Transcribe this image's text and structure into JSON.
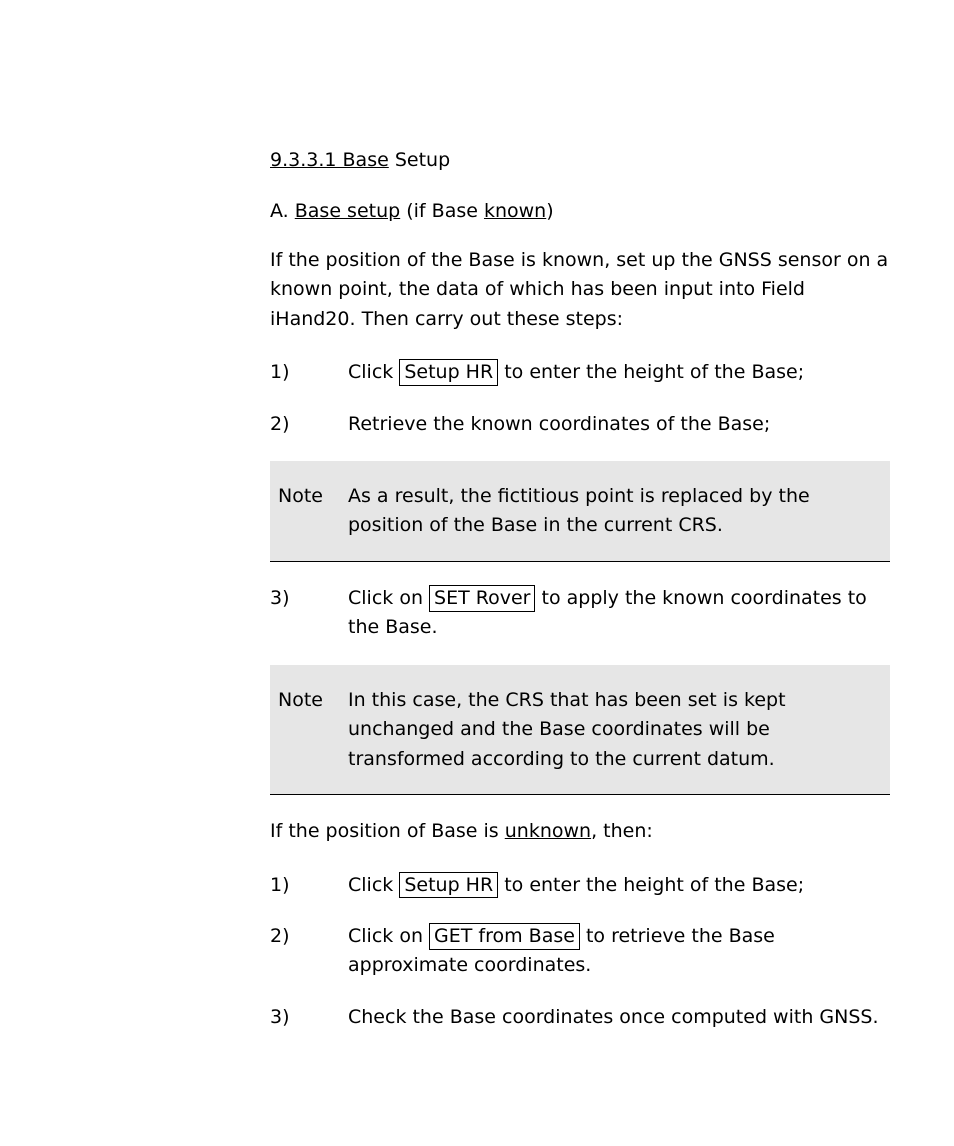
{
  "section_heading_underlined": "9.3.3.1 Base",
  "section_heading_trail": " Setup",
  "h2_num": "A.",
  "h2_u1": "Base setup",
  "h2_mid": " (if Base ",
  "h2_u2": "known",
  "h2_end": ")",
  "intro_para": "If the position of the Base is known, set up the GNSS sensor on a known point, the data of which has been input into Field iHand20. Then carry out these steps:",
  "steps": {
    "s1_num": "1)",
    "s1_text": "Click ",
    "s1_button": "Setup HR",
    "s1_after": " to enter the height of the Base;",
    "s2_num": "2)",
    "s2_text": "Retrieve the known coordinates of the Base;",
    "s3_num": "3)",
    "s3_text": "Click on ",
    "s3_button": "SET Rover",
    "s3_after": " to apply the known coordinates to the Base.",
    "s4_num": "1)",
    "s4_text": "Click ",
    "s4_button": "Setup HR",
    "s4_after": " to enter the height of the Base;",
    "s5_num": "2)",
    "s5_text": "Click on ",
    "s5_button": "GET from Base",
    "s5_after": " to retrieve the Base approximate coordinates.",
    "s6_num": "3)",
    "s6_text": "Check the Base coordinates once computed with GNSS."
  },
  "note1_lead": "Note",
  "note1_body": "As a result, the fictitious point is replaced by the position of the Base in the current CRS.",
  "note2_lead": "Note",
  "note2_body": "In this case, the CRS that has been set is kept unchanged and the Base coordinates will be transformed according to the current datum.",
  "mid_para_pre": "If the position of Base is ",
  "mid_para_link": "unknown",
  "mid_para_post": ", then:"
}
